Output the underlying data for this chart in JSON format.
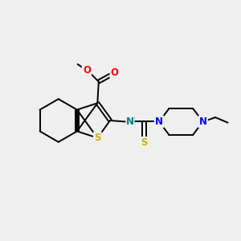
{
  "bg_color": "#efefef",
  "bond_color": "#000000",
  "S_color": "#c8b400",
  "N_color": "#0000ff",
  "O_color": "#ff0000",
  "NH_color": "#008080",
  "thioS_color": "#c8b400",
  "font_size": 8.5,
  "lw": 1.4,
  "fig_size": [
    3.0,
    3.0
  ],
  "dpi": 100,
  "xlim": [
    0,
    10
  ],
  "ylim": [
    0,
    10
  ]
}
